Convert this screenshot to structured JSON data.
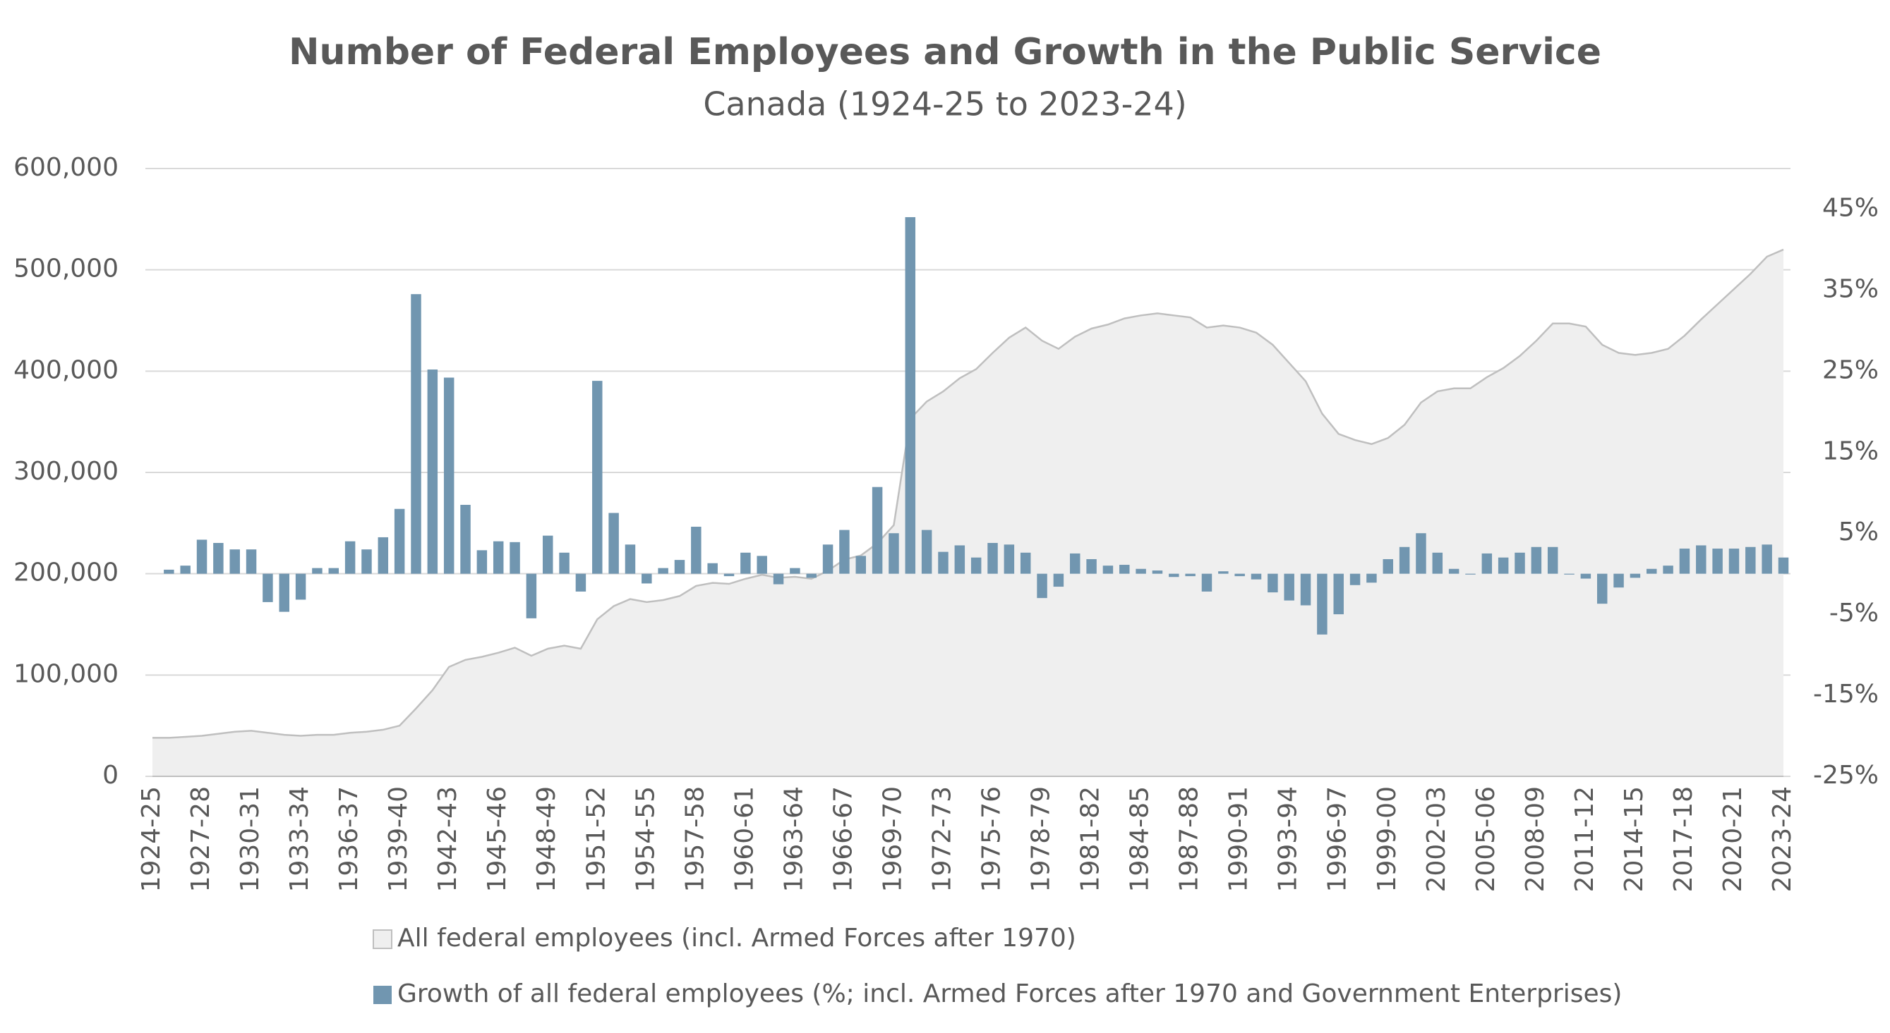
{
  "chart_data": {
    "type": "combo",
    "title": "Number of Federal Employees and Growth in the Public Service",
    "subtitle": "Canada (1924-25 to 2023-24)",
    "categories": [
      "1924-25",
      null,
      null,
      "1927-28",
      null,
      null,
      "1930-31",
      null,
      null,
      "1933-34",
      null,
      null,
      "1936-37",
      null,
      null,
      "1939-40",
      null,
      null,
      "1942-43",
      null,
      null,
      "1945-46",
      null,
      null,
      "1948-49",
      null,
      null,
      "1951-52",
      null,
      null,
      "1954-55",
      null,
      null,
      "1957-58",
      null,
      null,
      "1960-61",
      null,
      null,
      "1963-64",
      null,
      null,
      "1966-67",
      null,
      null,
      "1969-70",
      null,
      null,
      "1972-73",
      null,
      null,
      "1975-76",
      null,
      null,
      "1978-79",
      null,
      null,
      "1981-82",
      null,
      null,
      "1984-85",
      null,
      null,
      "1987-88",
      null,
      null,
      "1990-91",
      null,
      null,
      "1993-94",
      null,
      null,
      "1996-97",
      null,
      null,
      "1999-00",
      null,
      null,
      "2002-03",
      null,
      null,
      "2005-06",
      null,
      null,
      "2008-09",
      null,
      null,
      "2011-12",
      null,
      null,
      "2014-15",
      null,
      null,
      "2017-18",
      null,
      null,
      "2020-21",
      null,
      null,
      "2023-24"
    ],
    "series": [
      {
        "name": "All federal employees (incl. Armed Forces after 1970)",
        "type": "area",
        "color": "#efefef",
        "line_color": "#bfbfbf",
        "values": [
          38000,
          38000,
          39000,
          40000,
          42000,
          44000,
          45000,
          43000,
          41000,
          40000,
          41000,
          41000,
          43000,
          44000,
          46000,
          50000,
          67000,
          85000,
          108000,
          115000,
          118000,
          122000,
          127000,
          119000,
          126000,
          129000,
          126000,
          155000,
          168000,
          175000,
          172000,
          174000,
          178000,
          188000,
          191000,
          190000,
          195000,
          199000,
          196000,
          197000,
          195000,
          203000,
          214000,
          218000,
          230000,
          248000,
          353000,
          370000,
          380000,
          393000,
          402000,
          418000,
          433000,
          443000,
          430000,
          422000,
          434000,
          442000,
          446000,
          452000,
          455000,
          457000,
          455000,
          453000,
          443000,
          445000,
          443000,
          438000,
          426000,
          408000,
          390000,
          358000,
          338000,
          332000,
          328000,
          334000,
          347000,
          369000,
          380000,
          383000,
          383000,
          394000,
          403000,
          415000,
          430000,
          447000,
          447000,
          444000,
          426000,
          418000,
          416000,
          418000,
          422000,
          435000,
          451000,
          466000,
          481000,
          496000,
          513000,
          520000
        ]
      },
      {
        "name": "Growth of all federal employees (%; incl. Armed Forces after 1970 and Government Enterprises)",
        "type": "bar",
        "axis": "y2",
        "color": "#7196b0",
        "values": [
          0,
          0.5,
          1.0,
          4.2,
          3.8,
          3.0,
          3.0,
          -3.5,
          -4.7,
          -3.2,
          0.7,
          0.7,
          4.0,
          3.0,
          4.5,
          8.0,
          34.5,
          25.2,
          24.2,
          8.5,
          2.9,
          4.0,
          3.9,
          -5.5,
          4.7,
          2.6,
          -2.2,
          23.8,
          7.5,
          3.6,
          -1.2,
          0.7,
          1.7,
          5.8,
          1.3,
          -0.3,
          2.6,
          2.2,
          -1.3,
          0.7,
          -0.5,
          3.6,
          5.4,
          2.2,
          10.7,
          5.0,
          44.0,
          5.4,
          2.7,
          3.5,
          2.0,
          3.8,
          3.6,
          2.6,
          -3.0,
          -1.6,
          2.5,
          1.8,
          1.0,
          1.1,
          0.6,
          0.4,
          -0.4,
          -0.3,
          -2.2,
          0.3,
          -0.3,
          -0.7,
          -2.3,
          -3.3,
          -3.9,
          -7.5,
          -5.0,
          -1.4,
          -1.1,
          1.8,
          3.3,
          5.0,
          2.6,
          0.6,
          -0.1,
          2.5,
          2.0,
          2.6,
          3.3,
          3.3,
          -0.1,
          -0.6,
          -3.7,
          -1.7,
          -0.5,
          0.6,
          1.0,
          3.1,
          3.5,
          3.1,
          3.1,
          3.3,
          3.6,
          2.0
        ]
      }
    ],
    "ylim": [
      0,
      600000
    ],
    "yticks": [
      0,
      {
        "value": 100000,
        "label": "100,000"
      },
      {
        "value": 200000,
        "label": "200,000"
      },
      {
        "value": 300000,
        "label": "300,000"
      },
      {
        "value": 400000,
        "label": "400,000"
      },
      {
        "value": 500000,
        "label": "500,000"
      },
      {
        "value": 600000,
        "label": "600,000"
      }
    ],
    "y2lim": [
      -25,
      50
    ],
    "y2ticks": [
      {
        "value": -25,
        "label": "-25%"
      },
      {
        "value": -15,
        "label": "-15%"
      },
      {
        "value": -5,
        "label": "-5%"
      },
      {
        "value": 5,
        "label": "5%"
      },
      {
        "value": 15,
        "label": "15%"
      },
      {
        "value": 25,
        "label": "25%"
      },
      {
        "value": 35,
        "label": "35%"
      },
      {
        "value": 45,
        "label": "45%"
      }
    ],
    "grid": true
  }
}
